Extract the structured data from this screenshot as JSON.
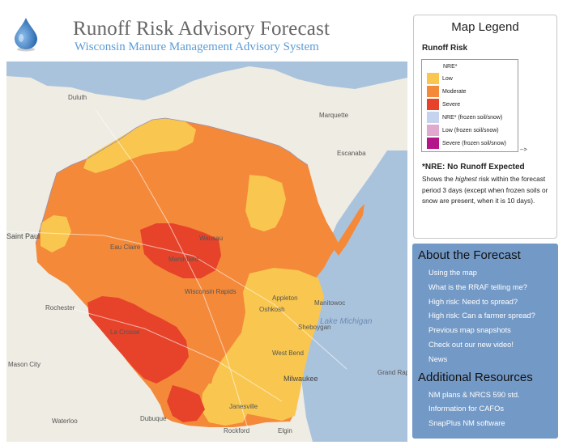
{
  "header": {
    "title": "Runoff Risk Advisory Forecast",
    "subtitle": "Wisconsin Manure Management Advisory System"
  },
  "colors": {
    "title": "#666666",
    "subtitle": "#5b9bd5",
    "panel_bg": "#7399c6",
    "low": "#f9c74f",
    "moderate": "#f4893a",
    "severe": "#e6432a",
    "nre_frozen": "#c6d3ee",
    "low_frozen": "#e2a9cf",
    "severe_frozen": "#b5158a",
    "water": "#aac3dd",
    "land": "#eeece3"
  },
  "map": {
    "places": {
      "duluth": "Duluth",
      "marquette": "Marquette",
      "escanaba": "Escanaba",
      "saint_paul": "Saint Paul",
      "eau_claire": "Eau Claire",
      "wausau": "Wausau",
      "marshfield": "Marshfield",
      "wisconsin_rapids": "Wisconsin Rapids",
      "rochester": "Rochester",
      "la_crosse": "La Crosse",
      "appleton": "Appleton",
      "oshkosh": "Oshkosh",
      "manitowoc": "Manitowoc",
      "sheboygan": "Sheboygan",
      "lake_michigan": "Lake Michigan",
      "west_bend": "West Bend",
      "milwaukee": "Milwaukee",
      "mason_city": "Mason City",
      "dubuque": "Dubuque",
      "janesville": "Janesville",
      "waterloo": "Waterloo",
      "rockford": "Rockford",
      "elgin": "Elgin",
      "grand_rapids": "Grand Rapids"
    }
  },
  "legend": {
    "title": "Map Legend",
    "subtitle": "Runoff Risk",
    "header_item": "NRE*",
    "items": [
      {
        "label": "Low",
        "color": "#f9c74f"
      },
      {
        "label": "Moderate",
        "color": "#f4893a"
      },
      {
        "label": "Severe",
        "color": "#e6432a"
      },
      {
        "label": "NRE* (frozen soil/snow)",
        "color": "#c6d3ee"
      },
      {
        "label": "Low (frozen soil/snow)",
        "color": "#e2a9cf"
      },
      {
        "label": "Severe (frozen soil/snow)",
        "color": "#b5158a"
      }
    ],
    "arrow": "-->",
    "nre_note": "*NRE: No Runoff Expected",
    "desc_before": "Shows the ",
    "desc_emph": "highest",
    "desc_after": " risk within the forecast period 3 days (except when frozen soils or snow are present, when it is 10 days)."
  },
  "about": {
    "heading": "About the Forecast",
    "links": [
      "Using the map",
      "What is the RRAF telling me?",
      "High risk: Need to spread?",
      "High risk: Can a farmer spread?",
      "Previous map snapshots",
      "Check out our new video!",
      "News"
    ]
  },
  "resources": {
    "heading": "Additional Resources",
    "links": [
      "NM plans & NRCS 590 std.",
      "Information for CAFOs",
      "SnapPlus NM software"
    ]
  }
}
